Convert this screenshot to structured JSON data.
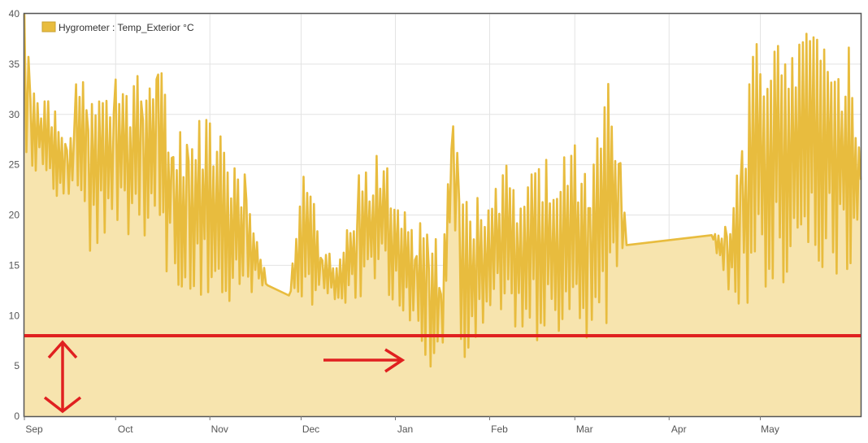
{
  "chart_data": {
    "type": "area",
    "legend": {
      "position": "top-left",
      "entries": [
        "Hygrometer : Temp_Exterior °C"
      ]
    },
    "grid": true,
    "ylim": [
      0,
      40
    ],
    "y_ticks": [
      "0",
      "5",
      "10",
      "15",
      "20",
      "25",
      "30",
      "35",
      "40"
    ],
    "x_ticks": [
      "Sep",
      "Oct",
      "Nov",
      "Dec",
      "Jan",
      "Feb",
      "Mar",
      "Apr",
      "May"
    ],
    "series": [
      {
        "name": "Hygrometer : Temp_Exterior °C",
        "color": "#e8bc3e",
        "fill": "#f7e4ae",
        "x": [
          "Sep 1",
          "Sep 3",
          "Sep 10",
          "Sep 15",
          "Sep 18",
          "Sep 22",
          "Oct 1",
          "Oct 10",
          "Oct 15",
          "Oct 20",
          "Oct 25",
          "Nov 1",
          "Nov 8",
          "Nov 13",
          "Nov 20",
          "Nov 27",
          "Dec 3",
          "Dec 8",
          "Dec 15",
          "Dec 20",
          "Dec 27",
          "Jan 3",
          "Jan 8",
          "Jan 12",
          "Jan 16",
          "Jan 20",
          "Jan 22",
          "Jan 28",
          "Feb 3",
          "Feb 10",
          "Feb 16",
          "Feb 22",
          "Mar 1",
          "Mar 6",
          "Mar 12",
          "Mar 16",
          "Mar 18",
          "Apr 15",
          "Apr 20",
          "Apr 25",
          "May 1",
          "May 8",
          "May 15",
          "May 22",
          "May 29",
          "Jun 3"
        ],
        "high": [
          40,
          34,
          31,
          29,
          33,
          34,
          34,
          35,
          37,
          31,
          29,
          31,
          27,
          24,
          13,
          12,
          28,
          16,
          17,
          24,
          28,
          23,
          20,
          20,
          16,
          30,
          25,
          22,
          26,
          25,
          28,
          26,
          27,
          27,
          34,
          29,
          17,
          18,
          19,
          30,
          40,
          40,
          40,
          38,
          39,
          30
        ],
        "low": [
          19,
          24,
          23,
          19,
          20,
          16,
          18,
          17,
          18,
          11,
          10,
          12,
          10,
          12,
          13,
          12,
          11,
          11,
          11,
          11,
          12,
          10,
          5,
          4,
          3,
          24,
          5,
          7,
          8,
          8,
          6,
          8,
          7,
          8,
          6,
          16,
          17,
          18,
          12,
          10,
          11,
          13,
          15,
          14,
          13,
          17
        ]
      }
    ],
    "annotations": {
      "threshold_line": {
        "y": 8,
        "color": "#e02020"
      },
      "arrows": [
        {
          "type": "vertical-double",
          "color": "#e02020"
        },
        {
          "type": "horizontal-right",
          "color": "#e02020"
        }
      ]
    }
  }
}
